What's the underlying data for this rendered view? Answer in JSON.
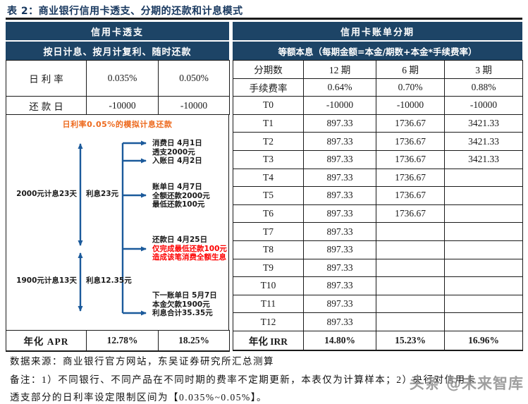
{
  "title": "表 2：商业银行信用卡透支、分期的还款和计息模式",
  "colors": {
    "header_bg": "#1D4466",
    "title_navy": "#17375E",
    "arrow_blue": "#1B5A9B",
    "highlight_orange": "#ED6A1E",
    "alert_red": "#FE0000",
    "watermark_gray": "#8F8F8F"
  },
  "left_panel": {
    "header1": "信用卡透支",
    "header2": "按日计息、按月计复利、随时还款",
    "rows": [
      {
        "label": "日利率",
        "v1": "0.035%",
        "v2": "0.050%"
      },
      {
        "label": "还款日",
        "v1": "-10000",
        "v2": "-10000"
      }
    ],
    "apr": {
      "label": "年化 APR",
      "v1": "12.78%",
      "v2": "18.25%"
    }
  },
  "right_panel": {
    "header1": "信用卡账单分期",
    "header2": "等额本息（每期金额=本金/期数+本金*手续费率）",
    "rows": [
      [
        "分期数",
        "12 期",
        "6 期",
        "3 期"
      ],
      [
        "手续费率",
        "0.64%",
        "0.70%",
        "0.88%"
      ],
      [
        "T0",
        "-10000",
        "-10000",
        "-10000"
      ],
      [
        "T1",
        "897.33",
        "1736.67",
        "3421.33"
      ],
      [
        "T2",
        "897.33",
        "1736.67",
        "3421.33"
      ],
      [
        "T3",
        "897.33",
        "1736.67",
        "3421.33"
      ],
      [
        "T4",
        "897.33",
        "1736.67",
        ""
      ],
      [
        "T5",
        "897.33",
        "1736.67",
        ""
      ],
      [
        "T6",
        "897.33",
        "1736.67",
        ""
      ],
      [
        "T7",
        "897.33",
        "",
        ""
      ],
      [
        "T8",
        "897.33",
        "",
        ""
      ],
      [
        "T9",
        "897.33",
        "",
        ""
      ],
      [
        "T10",
        "897.33",
        "",
        ""
      ],
      [
        "T11",
        "897.33",
        "",
        ""
      ],
      [
        "T12",
        "897.33",
        "",
        ""
      ],
      [
        "年化 IRR",
        "14.80%",
        "15.23%",
        "16.96%"
      ]
    ]
  },
  "diagram": {
    "caption": "日利率0.05%的模拟计息还款",
    "segments": [
      {
        "left": "2000元计息23天",
        "right": "利息23元"
      },
      {
        "left": "1900元计息13天",
        "right": "利息12.35元"
      }
    ],
    "events": [
      {
        "lines": [
          "消费日 4月1日",
          "透支2000元",
          "入账日 4月2日"
        ]
      },
      {
        "lines": [
          "账单日 4月7日",
          "全额还款2000元",
          "最低还款100元"
        ]
      },
      {
        "lines": [
          "还款日 4月25日",
          "仅完成最低还款100元",
          "造成该笔消费全额生息"
        ]
      },
      {
        "lines": [
          "下一账单日 5月7日",
          "本金欠款1900元",
          "利息合计35.35元"
        ]
      }
    ]
  },
  "footer": {
    "source": "数据来源：商业银行官方网站，东吴证券研究所汇总测算",
    "note_line1": "备注：1）不同银行、不同产品在不同时期的费率不定期更新，本表仅为计算样本；2）央行对信用卡",
    "note_line2": "透支部分的日利率设定限制区间为【0.035%~0.05%】。",
    "watermark": "头条 @未来智库"
  }
}
